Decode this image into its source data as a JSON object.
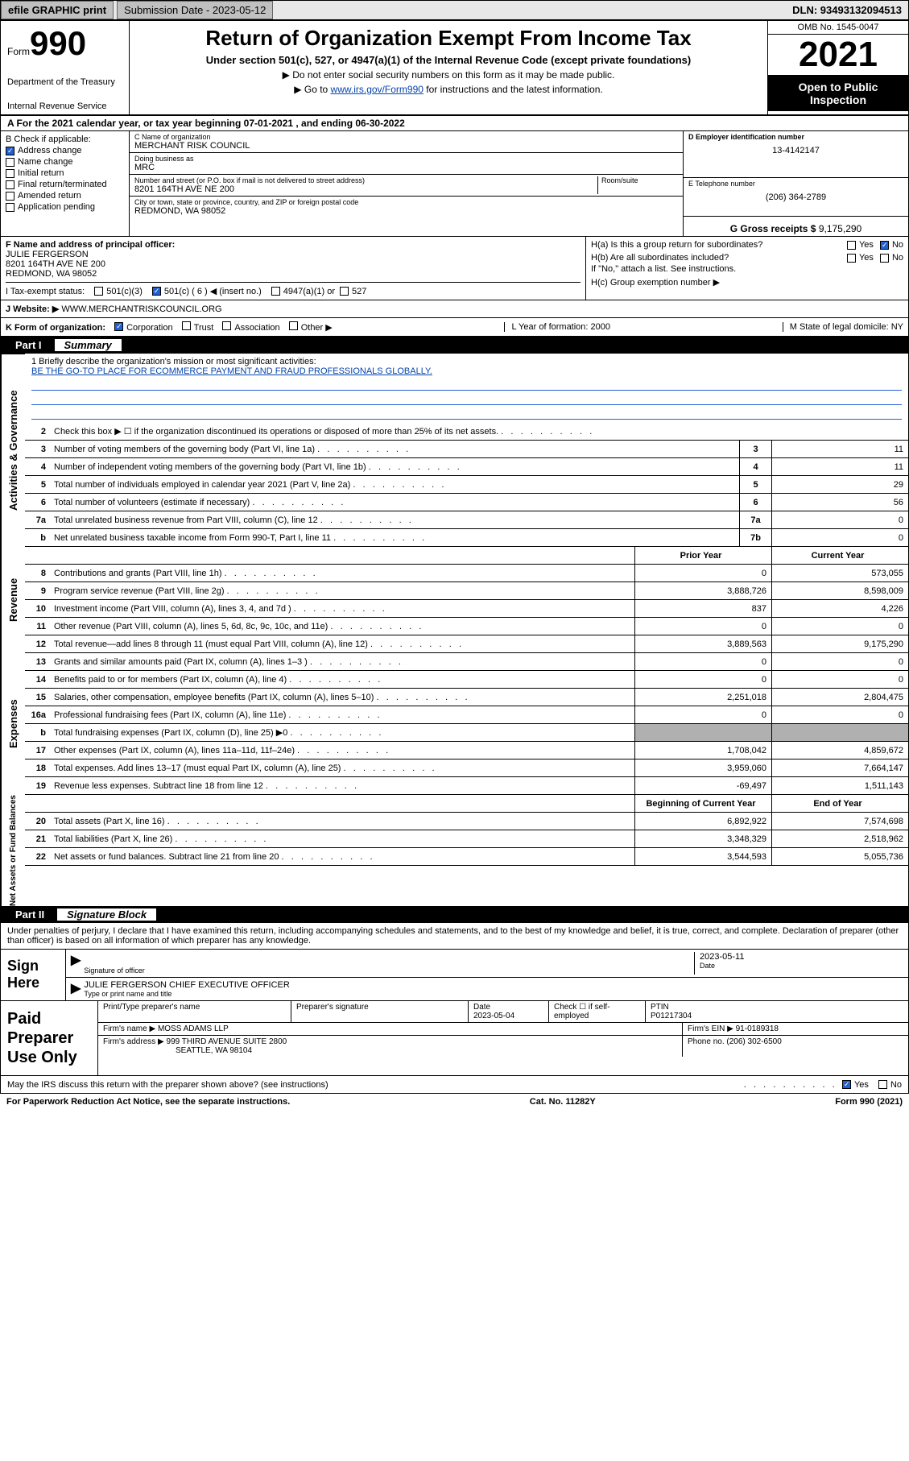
{
  "topbar": {
    "efile": "efile GRAPHIC print",
    "submission": "Submission Date - 2023-05-12",
    "dln": "DLN: 93493132094513"
  },
  "header": {
    "form_word": "Form",
    "form_num": "990",
    "dept": "Department of the Treasury",
    "irs": "Internal Revenue Service",
    "title": "Return of Organization Exempt From Income Tax",
    "subtitle": "Under section 501(c), 527, or 4947(a)(1) of the Internal Revenue Code (except private foundations)",
    "instr1": "Do not enter social security numbers on this form as it may be made public.",
    "instr2_pre": "Go to ",
    "instr2_link": "www.irs.gov/Form990",
    "instr2_post": " for instructions and the latest information.",
    "omb": "OMB No. 1545-0047",
    "year": "2021",
    "inspection": "Open to Public Inspection"
  },
  "row_a": "A For the 2021 calendar year, or tax year beginning 07-01-2021   , and ending 06-30-2022",
  "section_b": {
    "label": "B Check if applicable:",
    "items": [
      {
        "label": "Address change",
        "checked": true
      },
      {
        "label": "Name change",
        "checked": false
      },
      {
        "label": "Initial return",
        "checked": false
      },
      {
        "label": "Final return/terminated",
        "checked": false
      },
      {
        "label": "Amended return",
        "checked": false
      },
      {
        "label": "Application pending",
        "checked": false
      }
    ]
  },
  "section_c": {
    "name_label": "C Name of organization",
    "name": "MERCHANT RISK COUNCIL",
    "dba_label": "Doing business as",
    "dba": "MRC",
    "street_label": "Number and street (or P.O. box if mail is not delivered to street address)",
    "room_label": "Room/suite",
    "street": "8201 164TH AVE NE 200",
    "city_label": "City or town, state or province, country, and ZIP or foreign postal code",
    "city": "REDMOND, WA  98052"
  },
  "section_d": {
    "label": "D Employer identification number",
    "val": "13-4142147"
  },
  "section_e": {
    "label": "E Telephone number",
    "val": "(206) 364-2789"
  },
  "section_g": {
    "label": "G Gross receipts $",
    "val": "9,175,290"
  },
  "section_f": {
    "label": "F Name and address of principal officer:",
    "name": "JULIE FERGERSON",
    "addr1": "8201 164TH AVE NE 200",
    "addr2": "REDMOND, WA  98052"
  },
  "section_h": {
    "ha": "H(a)  Is this a group return for subordinates?",
    "ha_yes": "Yes",
    "ha_no": "No",
    "hb": "H(b)  Are all subordinates included?",
    "hb_yes": "Yes",
    "hb_no": "No",
    "hb_note": "If \"No,\" attach a list. See instructions.",
    "hc": "H(c)  Group exemption number ▶"
  },
  "status": {
    "label": "I    Tax-exempt status:",
    "c3": "501(c)(3)",
    "c6": "501(c) ( 6 ) ◀ (insert no.)",
    "a1": "4947(a)(1) or",
    "s527": "527"
  },
  "website": {
    "label": "J   Website: ▶",
    "val": "WWW.MERCHANTRISKCOUNCIL.ORG"
  },
  "korg": {
    "k": "K Form of organization:",
    "corp": "Corporation",
    "trust": "Trust",
    "assoc": "Association",
    "other": "Other ▶",
    "l": "L Year of formation: 2000",
    "m": "M State of legal domicile: NY"
  },
  "part1": {
    "part": "Part I",
    "name": "Summary"
  },
  "mission": {
    "q": "1   Briefly describe the organization's mission or most significant activities:",
    "a": "BE THE GO-TO PLACE FOR ECOMMERCE PAYMENT AND FRAUD PROFESSIONALS GLOBALLY."
  },
  "gov_rows": [
    {
      "num": "2",
      "txt": "Check this box ▶ ☐  if the organization discontinued its operations or disposed of more than 25% of its net assets.",
      "cell": "",
      "val": ""
    },
    {
      "num": "3",
      "txt": "Number of voting members of the governing body (Part VI, line 1a)",
      "cell": "3",
      "val": "11"
    },
    {
      "num": "4",
      "txt": "Number of independent voting members of the governing body (Part VI, line 1b)",
      "cell": "4",
      "val": "11"
    },
    {
      "num": "5",
      "txt": "Total number of individuals employed in calendar year 2021 (Part V, line 2a)",
      "cell": "5",
      "val": "29"
    },
    {
      "num": "6",
      "txt": "Total number of volunteers (estimate if necessary)",
      "cell": "6",
      "val": "56"
    },
    {
      "num": "7a",
      "txt": "Total unrelated business revenue from Part VIII, column (C), line 12",
      "cell": "7a",
      "val": "0"
    },
    {
      "num": "b",
      "txt": "Net unrelated business taxable income from Form 990-T, Part I, line 11",
      "cell": "7b",
      "val": "0"
    }
  ],
  "rev_hdr": {
    "prior": "Prior Year",
    "current": "Current Year"
  },
  "rev_rows": [
    {
      "num": "8",
      "txt": "Contributions and grants (Part VIII, line 1h)",
      "prior": "0",
      "current": "573,055"
    },
    {
      "num": "9",
      "txt": "Program service revenue (Part VIII, line 2g)",
      "prior": "3,888,726",
      "current": "8,598,009"
    },
    {
      "num": "10",
      "txt": "Investment income (Part VIII, column (A), lines 3, 4, and 7d )",
      "prior": "837",
      "current": "4,226"
    },
    {
      "num": "11",
      "txt": "Other revenue (Part VIII, column (A), lines 5, 6d, 8c, 9c, 10c, and 11e)",
      "prior": "0",
      "current": "0"
    },
    {
      "num": "12",
      "txt": "Total revenue—add lines 8 through 11 (must equal Part VIII, column (A), line 12)",
      "prior": "3,889,563",
      "current": "9,175,290"
    }
  ],
  "exp_rows": [
    {
      "num": "13",
      "txt": "Grants and similar amounts paid (Part IX, column (A), lines 1–3 )",
      "prior": "0",
      "current": "0"
    },
    {
      "num": "14",
      "txt": "Benefits paid to or for members (Part IX, column (A), line 4)",
      "prior": "0",
      "current": "0"
    },
    {
      "num": "15",
      "txt": "Salaries, other compensation, employee benefits (Part IX, column (A), lines 5–10)",
      "prior": "2,251,018",
      "current": "2,804,475"
    },
    {
      "num": "16a",
      "txt": "Professional fundraising fees (Part IX, column (A), line 11e)",
      "prior": "0",
      "current": "0"
    },
    {
      "num": "b",
      "txt": "Total fundraising expenses (Part IX, column (D), line 25) ▶0",
      "prior": "grey",
      "current": "grey"
    },
    {
      "num": "17",
      "txt": "Other expenses (Part IX, column (A), lines 11a–11d, 11f–24e)",
      "prior": "1,708,042",
      "current": "4,859,672"
    },
    {
      "num": "18",
      "txt": "Total expenses. Add lines 13–17 (must equal Part IX, column (A), line 25)",
      "prior": "3,959,060",
      "current": "7,664,147"
    },
    {
      "num": "19",
      "txt": "Revenue less expenses. Subtract line 18 from line 12",
      "prior": "-69,497",
      "current": "1,511,143"
    }
  ],
  "net_hdr": {
    "prior": "Beginning of Current Year",
    "current": "End of Year"
  },
  "net_rows": [
    {
      "num": "20",
      "txt": "Total assets (Part X, line 16)",
      "prior": "6,892,922",
      "current": "7,574,698"
    },
    {
      "num": "21",
      "txt": "Total liabilities (Part X, line 26)",
      "prior": "3,348,329",
      "current": "2,518,962"
    },
    {
      "num": "22",
      "txt": "Net assets or fund balances. Subtract line 21 from line 20",
      "prior": "3,544,593",
      "current": "5,055,736"
    }
  ],
  "vtabs": {
    "gov": "Activities & Governance",
    "rev": "Revenue",
    "exp": "Expenses",
    "net": "Net Assets or Fund Balances"
  },
  "part2": {
    "part": "Part II",
    "name": "Signature Block"
  },
  "sig": {
    "penalties": "Under penalties of perjury, I declare that I have examined this return, including accompanying schedules and statements, and to the best of my knowledge and belief, it is true, correct, and complete. Declaration of preparer (other than officer) is based on all information of which preparer has any knowledge.",
    "sign_here": "Sign Here",
    "sig_officer": "Signature of officer",
    "date": "2023-05-11",
    "date_label": "Date",
    "name_title": "JULIE FERGERSON  CHIEF EXECUTIVE OFFICER",
    "name_label": "Type or print name and title"
  },
  "prep": {
    "label": "Paid Preparer Use Only",
    "print_name": "Print/Type preparer's name",
    "prep_sig": "Preparer's signature",
    "date_label": "Date",
    "date": "2023-05-04",
    "check_label": "Check ☐ if self-employed",
    "ptin_label": "PTIN",
    "ptin": "P01217304",
    "firm_name_label": "Firm's name   ▶",
    "firm_name": "MOSS ADAMS LLP",
    "firm_ein_label": "Firm's EIN ▶",
    "firm_ein": "91-0189318",
    "firm_addr_label": "Firm's address ▶",
    "firm_addr1": "999 THIRD AVENUE SUITE 2800",
    "firm_addr2": "SEATTLE, WA  98104",
    "phone_label": "Phone no.",
    "phone": "(206) 302-6500"
  },
  "discuss": {
    "txt": "May the IRS discuss this return with the preparer shown above? (see instructions)",
    "yes": "Yes",
    "no": "No"
  },
  "footer": {
    "left": "For Paperwork Reduction Act Notice, see the separate instructions.",
    "mid": "Cat. No. 11282Y",
    "right": "Form 990 (2021)"
  },
  "colors": {
    "blue": "#2060d0",
    "link": "#0645ad",
    "grey": "#b0b0b0"
  }
}
